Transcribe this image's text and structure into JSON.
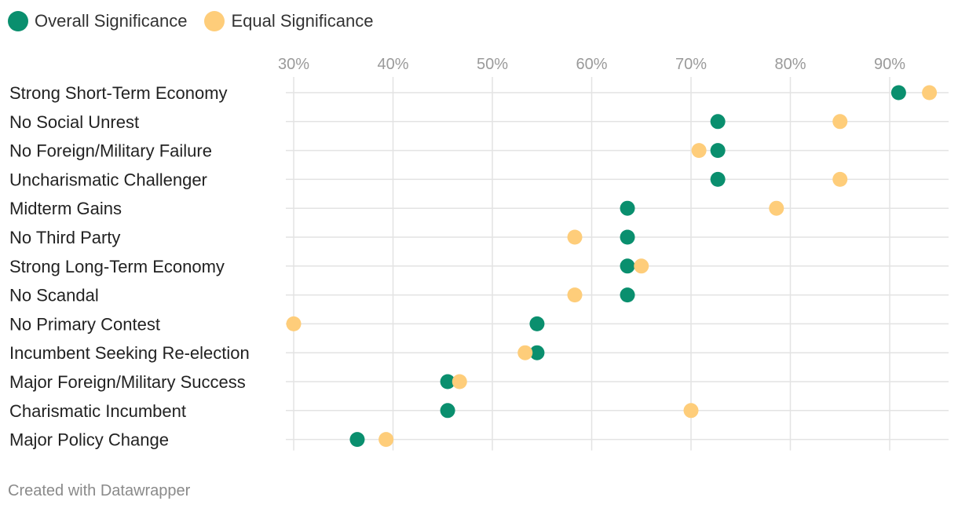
{
  "legend": {
    "items": [
      {
        "label": "Overall Significance",
        "color": "#0a8f6e"
      },
      {
        "label": "Equal Significance",
        "color": "#fecd7a"
      }
    ]
  },
  "footer": {
    "credit": "Created with Datawrapper"
  },
  "chart_data": {
    "type": "scatter",
    "subtype": "dot-plot",
    "grid": true,
    "legend_position": "top-left",
    "x_ticks": [
      "30%",
      "40%",
      "50%",
      "60%",
      "70%",
      "80%",
      "90%"
    ],
    "xlim": [
      30,
      90
    ],
    "categories": [
      "Strong Short-Term Economy",
      "No Social Unrest",
      "No Foreign/Military Failure",
      "Uncharismatic Challenger",
      "Midterm Gains",
      "No Third Party",
      "Strong Long-Term Economy",
      "No Scandal",
      "No Primary Contest",
      "Incumbent Seeking Re-election",
      "Major Foreign/Military Success",
      "Charismatic Incumbent",
      "Major Policy Change"
    ],
    "series": [
      {
        "name": "Overall Significance",
        "color": "#0a8f6e",
        "values": [
          90.9,
          72.7,
          72.7,
          72.7,
          63.6,
          63.6,
          63.6,
          63.6,
          54.5,
          54.5,
          45.5,
          45.5,
          36.4
        ]
      },
      {
        "name": "Equal Significance",
        "color": "#fecd7a",
        "values": [
          94.0,
          85.0,
          70.8,
          85.0,
          78.6,
          58.3,
          65.0,
          58.3,
          30.0,
          53.3,
          46.7,
          70.0,
          39.3
        ]
      }
    ]
  }
}
